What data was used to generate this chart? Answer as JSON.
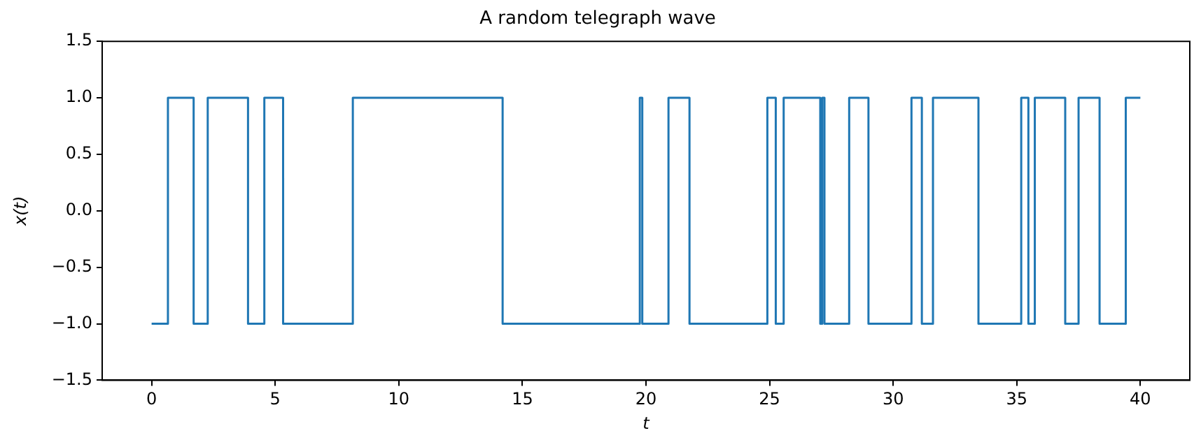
{
  "chart_data": {
    "type": "step",
    "title": "A random telegraph wave",
    "xlabel": "t",
    "ylabel": "x(t)",
    "series": [
      {
        "color": "#1f77b4",
        "x": [
          0,
          0.66,
          1.7,
          2.27,
          3.9,
          4.56,
          5.32,
          8.14,
          14.2,
          19.75,
          19.85,
          20.91,
          21.76,
          24.91,
          25.25,
          25.57,
          27.05,
          27.13,
          27.22,
          28.22,
          29.0,
          30.74,
          31.16,
          31.61,
          33.45,
          35.18,
          35.47,
          35.73,
          36.96,
          37.5,
          38.35,
          39.41,
          40
        ],
        "values": [
          -1,
          1,
          -1,
          1,
          -1,
          1,
          -1,
          1,
          -1,
          1,
          -1,
          1,
          -1,
          1,
          -1,
          1,
          -1,
          1,
          -1,
          1,
          -1,
          1,
          -1,
          1,
          -1,
          1,
          -1,
          1,
          -1,
          1,
          -1,
          1,
          1
        ]
      }
    ],
    "xlim": [
      -2,
      42
    ],
    "xticks": [
      0,
      5,
      10,
      15,
      20,
      25,
      30,
      35,
      40
    ],
    "ylim": [
      -1.5,
      1.5
    ],
    "yticks": [
      {
        "value": -1.5,
        "label": "−1.5"
      },
      {
        "value": -1,
        "label": "−1.0"
      },
      {
        "value": -0.5,
        "label": "−0.5"
      },
      {
        "value": 0,
        "label": "0.0"
      },
      {
        "value": 0.5,
        "label": "0.5"
      },
      {
        "value": 1,
        "label": "1.0"
      },
      {
        "value": 1.5,
        "label": "1.5"
      }
    ],
    "grid": false,
    "legend": false
  }
}
